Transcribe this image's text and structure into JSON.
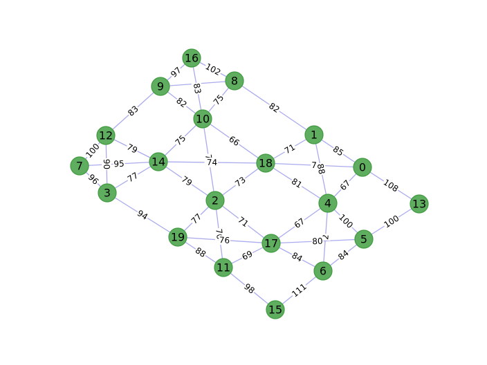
{
  "graph": {
    "nodes": [
      "0",
      "1",
      "2",
      "3",
      "4",
      "5",
      "6",
      "7",
      "8",
      "9",
      "10",
      "11",
      "12",
      "13",
      "14",
      "15",
      "16",
      "17",
      "18",
      "19"
    ],
    "edges": [
      {
        "a": "16",
        "b": "9",
        "w": "97"
      },
      {
        "a": "16",
        "b": "8",
        "w": "102"
      },
      {
        "a": "16",
        "b": "10",
        "w": "83"
      },
      {
        "a": "9",
        "b": "8",
        "w": ""
      },
      {
        "a": "9",
        "b": "12",
        "w": "83"
      },
      {
        "a": "9",
        "b": "10",
        "w": "82"
      },
      {
        "a": "8",
        "b": "10",
        "w": "75"
      },
      {
        "a": "8",
        "b": "1",
        "w": "82"
      },
      {
        "a": "10",
        "b": "14",
        "w": "75"
      },
      {
        "a": "10",
        "b": "18",
        "w": "66"
      },
      {
        "a": "10",
        "b": "2",
        "w": "74"
      },
      {
        "a": "12",
        "b": "14",
        "w": "79"
      },
      {
        "a": "12",
        "b": "7",
        "w": "100"
      },
      {
        "a": "12",
        "b": "3",
        "w": "90"
      },
      {
        "a": "7",
        "b": "14",
        "w": "95"
      },
      {
        "a": "7",
        "b": "3",
        "w": "96"
      },
      {
        "a": "14",
        "b": "18",
        "w": "74"
      },
      {
        "a": "14",
        "b": "3",
        "w": "77"
      },
      {
        "a": "14",
        "b": "2",
        "w": "79"
      },
      {
        "a": "3",
        "b": "19",
        "w": "94"
      },
      {
        "a": "18",
        "b": "1",
        "w": "71"
      },
      {
        "a": "18",
        "b": "0",
        "w": "7"
      },
      {
        "a": "18",
        "b": "2",
        "w": "73"
      },
      {
        "a": "18",
        "b": "4",
        "w": "81"
      },
      {
        "a": "1",
        "b": "0",
        "w": "85"
      },
      {
        "a": "1",
        "b": "4",
        "w": "88"
      },
      {
        "a": "0",
        "b": "4",
        "w": "67"
      },
      {
        "a": "0",
        "b": "13",
        "w": "108"
      },
      {
        "a": "2",
        "b": "19",
        "w": "77"
      },
      {
        "a": "2",
        "b": "17",
        "w": "71"
      },
      {
        "a": "2",
        "b": "11",
        "w": "76"
      },
      {
        "a": "4",
        "b": "17",
        "w": "67"
      },
      {
        "a": "4",
        "b": "5",
        "w": "100"
      },
      {
        "a": "4",
        "b": "6",
        "w": "2"
      },
      {
        "a": "13",
        "b": "5",
        "w": "100"
      },
      {
        "a": "19",
        "b": "17",
        "w": "76"
      },
      {
        "a": "19",
        "b": "11",
        "w": "88"
      },
      {
        "a": "17",
        "b": "5",
        "w": "80"
      },
      {
        "a": "17",
        "b": "6",
        "w": "84"
      },
      {
        "a": "17",
        "b": "11",
        "w": "69"
      },
      {
        "a": "5",
        "b": "6",
        "w": "84"
      },
      {
        "a": "11",
        "b": "15",
        "w": "98"
      },
      {
        "a": "6",
        "b": "15",
        "w": "111"
      }
    ],
    "colors": {
      "node_fill": "#5fae5f",
      "node_stroke": "#3f9a3f",
      "edge": "#aaaaee"
    }
  }
}
